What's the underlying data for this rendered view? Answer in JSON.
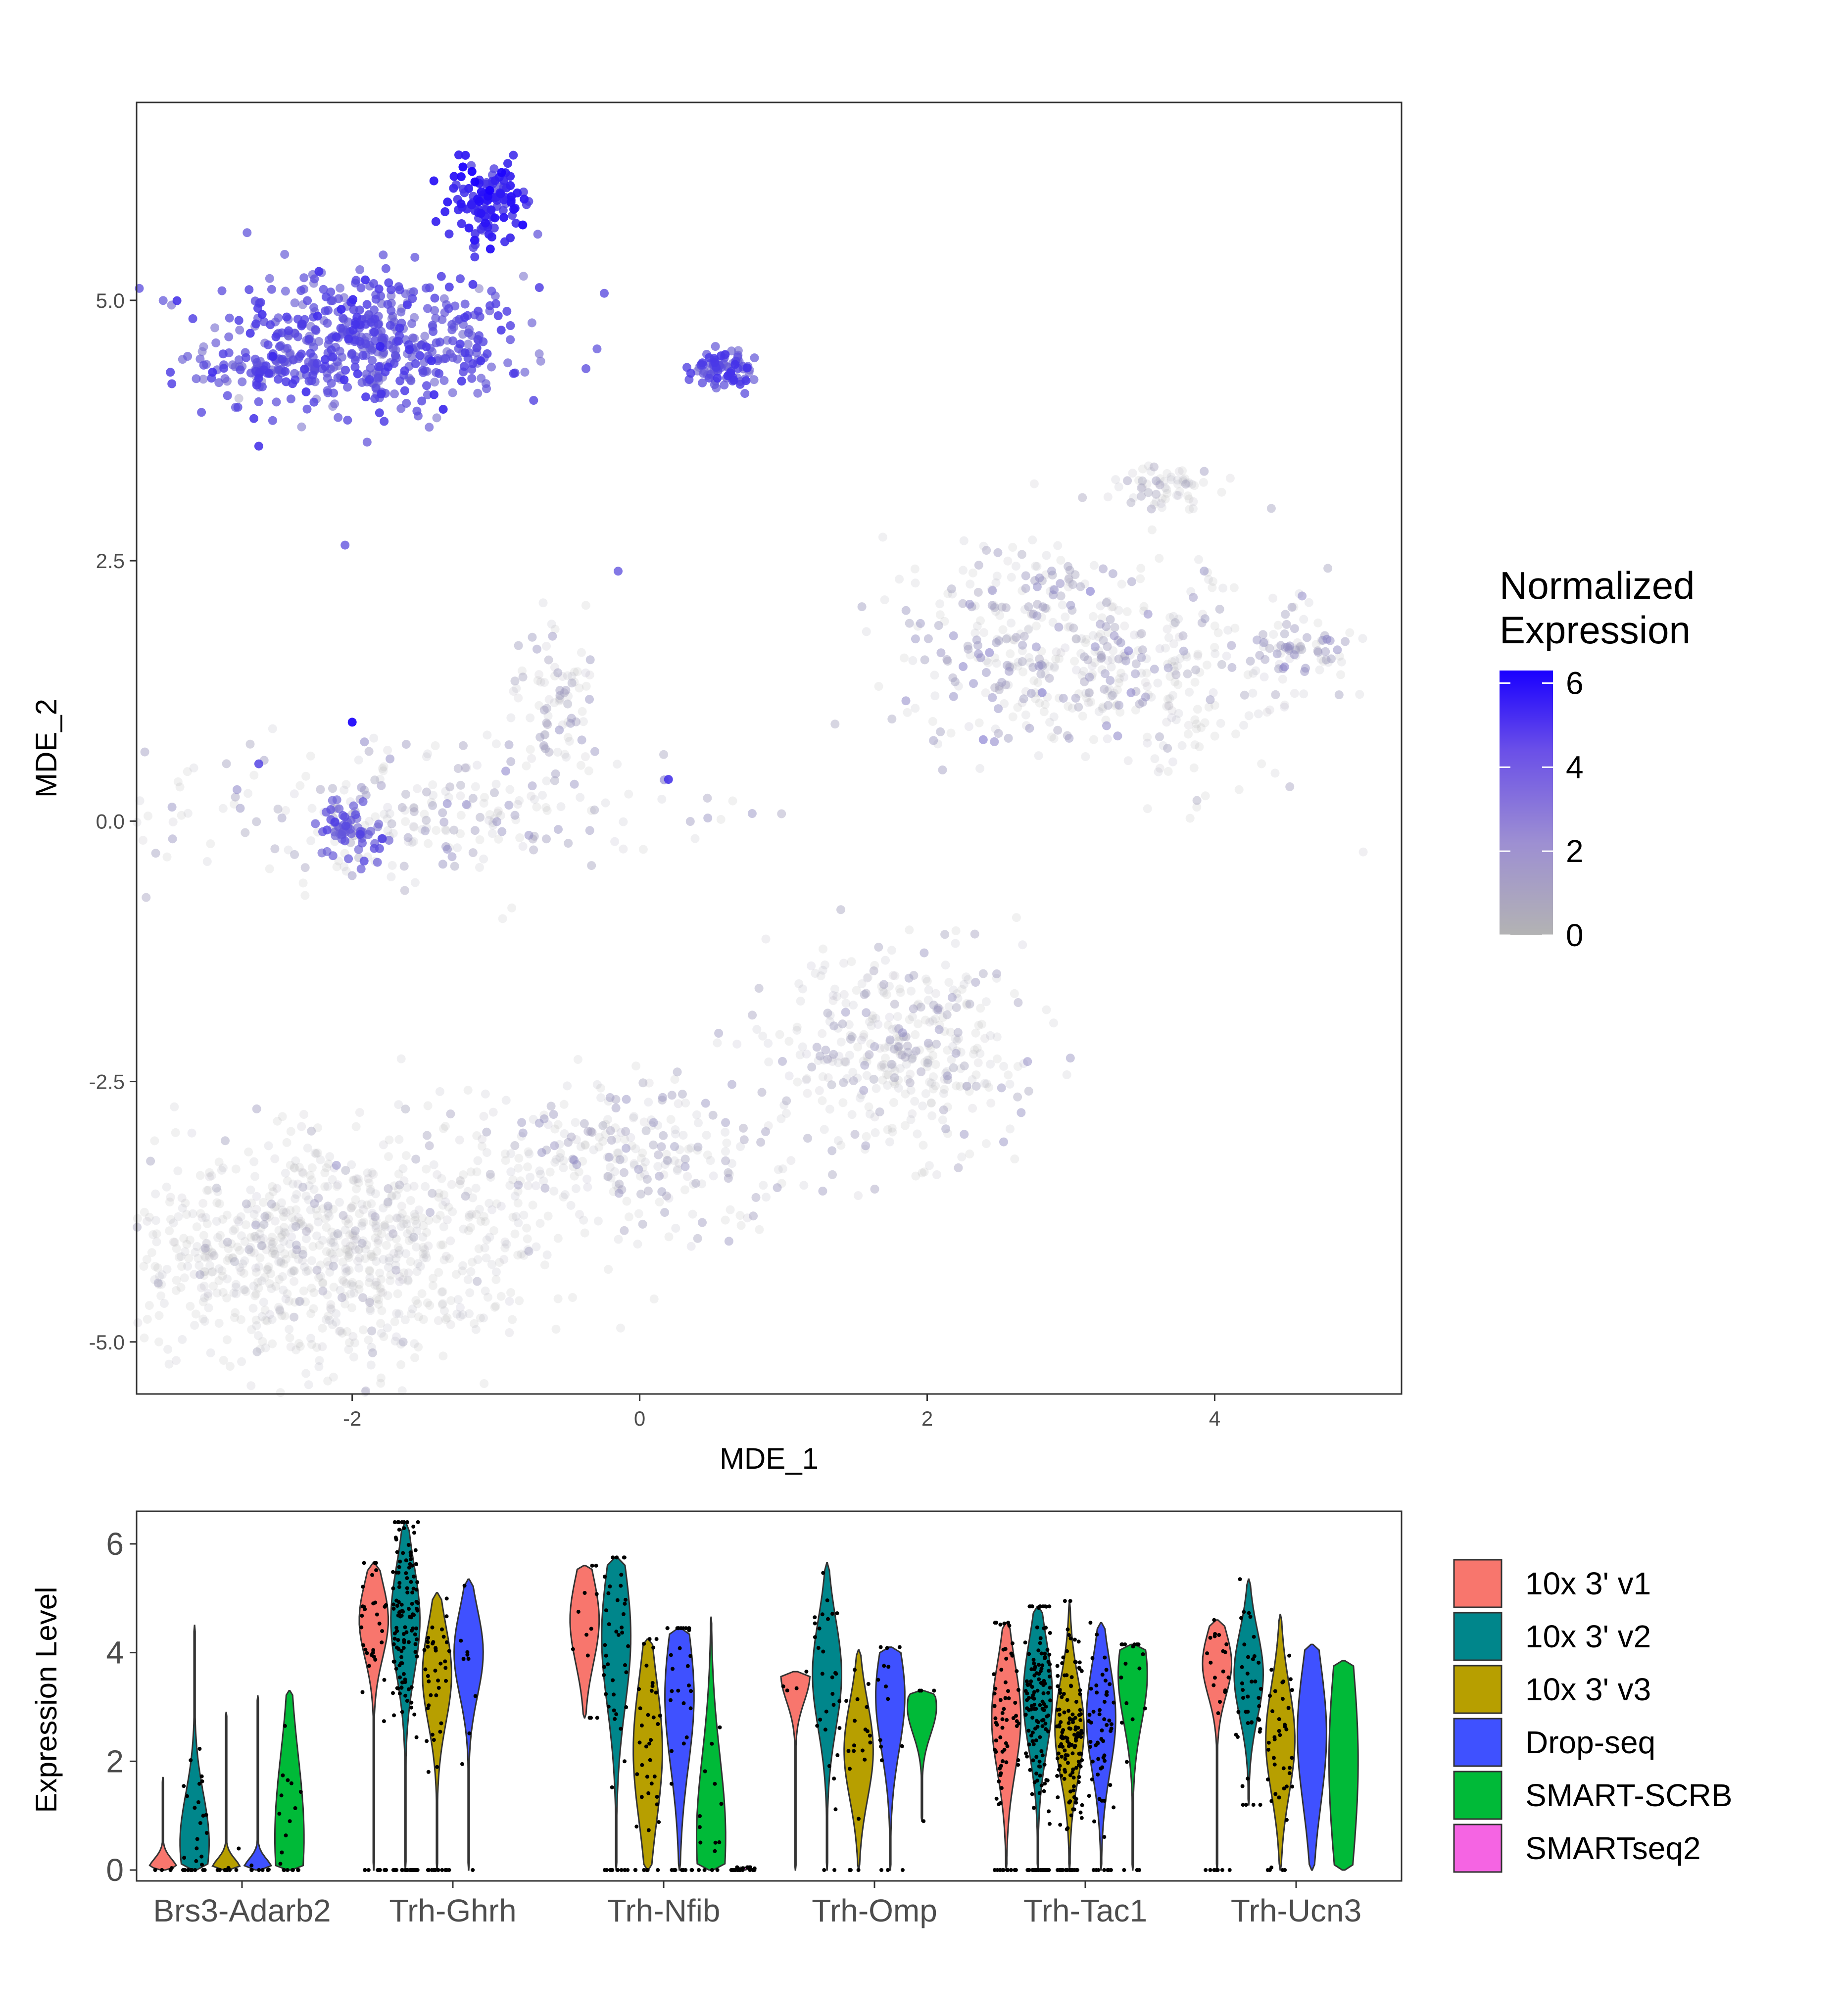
{
  "chart_data": [
    {
      "type": "scatter",
      "xlabel": "MDE_1",
      "ylabel": "MDE_2",
      "xlim": [
        -3.5,
        5.3
      ],
      "ylim": [
        -5.5,
        6.9
      ],
      "x_ticks": [
        -2,
        0,
        2,
        4
      ],
      "y_ticks": [
        -5.0,
        -2.5,
        0.0,
        2.5,
        5.0
      ],
      "x_tick_labels": [
        "-2",
        "0",
        "2",
        "4"
      ],
      "y_tick_labels": [
        "-5.0",
        "-2.5",
        "0.0",
        "2.5",
        "5.0"
      ],
      "grid": false,
      "legend": {
        "title_lines": [
          "Normalized",
          "Expression"
        ],
        "position": "right",
        "range": [
          0,
          6.3
        ],
        "ticks": [
          0,
          2,
          4,
          6
        ],
        "tick_labels": [
          "0",
          "2",
          "4",
          "6"
        ],
        "low_color": "#b3b3b3",
        "high_color": "#1a00ff"
      },
      "clusters": [
        {
          "name": "top-left high",
          "cx": -1.9,
          "cy": 4.6,
          "sx": 0.55,
          "sy": 0.35,
          "n": 520,
          "expr": 3.4,
          "expr_sd": 0.6
        },
        {
          "name": "top-left peak",
          "cx": -1.05,
          "cy": 5.95,
          "sx": 0.15,
          "sy": 0.2,
          "n": 120,
          "expr": 4.8,
          "expr_sd": 0.7
        },
        {
          "name": "top-left tail",
          "cx": -2.6,
          "cy": 4.3,
          "sx": 0.3,
          "sy": 0.1,
          "n": 60,
          "expr": 3.5,
          "expr_sd": 0.5
        },
        {
          "name": "top-middle",
          "cx": 0.6,
          "cy": 4.35,
          "sx": 0.12,
          "sy": 0.1,
          "n": 80,
          "expr": 3.6,
          "expr_sd": 0.6
        },
        {
          "name": "middle-left arm",
          "cx": -1.6,
          "cy": 0.1,
          "sx": 0.9,
          "sy": 0.35,
          "n": 260,
          "expr": 0.5,
          "expr_sd": 0.5
        },
        {
          "name": "middle-left arm up",
          "cx": -0.6,
          "cy": 1.2,
          "sx": 0.15,
          "sy": 0.35,
          "n": 80,
          "expr": 0.4,
          "expr_sd": 0.4
        },
        {
          "name": "middle-left spot",
          "cx": -2.0,
          "cy": -0.1,
          "sx": 0.12,
          "sy": 0.12,
          "n": 60,
          "expr": 3.2,
          "expr_sd": 0.5
        },
        {
          "name": "right arm",
          "cx": 2.7,
          "cy": 1.8,
          "sx": 0.5,
          "sy": 0.5,
          "n": 260,
          "expr": 0.5,
          "expr_sd": 0.6
        },
        {
          "name": "right arm body",
          "cx": 3.6,
          "cy": 1.4,
          "sx": 0.6,
          "sy": 0.55,
          "n": 260,
          "expr": 0.3,
          "expr_sd": 0.4
        },
        {
          "name": "right arm top",
          "cx": 3.7,
          "cy": 3.2,
          "sx": 0.2,
          "sy": 0.1,
          "n": 60,
          "expr": 0.3,
          "expr_sd": 0.3
        },
        {
          "name": "right arm tip",
          "cx": 4.55,
          "cy": 1.65,
          "sx": 0.2,
          "sy": 0.2,
          "n": 60,
          "expr": 0.8,
          "expr_sd": 0.6
        },
        {
          "name": "bottom right blob",
          "cx": 1.8,
          "cy": -2.2,
          "sx": 0.45,
          "sy": 0.45,
          "n": 380,
          "expr": 0.3,
          "expr_sd": 0.4
        },
        {
          "name": "bottom bridge",
          "cx": 0.0,
          "cy": -3.2,
          "sx": 0.6,
          "sy": 0.35,
          "n": 260,
          "expr": 0.4,
          "expr_sd": 0.4
        },
        {
          "name": "bottom left body",
          "cx": -2.2,
          "cy": -4.1,
          "sx": 0.75,
          "sy": 0.55,
          "n": 900,
          "expr": 0.15,
          "expr_sd": 0.3
        }
      ],
      "scattered_points": [
        {
          "x": -2.65,
          "y": 3.6,
          "expr": 4.5
        },
        {
          "x": -2.05,
          "y": 2.65,
          "expr": 3.5
        },
        {
          "x": -0.15,
          "y": 2.4,
          "expr": 3.5
        },
        {
          "x": -2.0,
          "y": 0.95,
          "expr": 6.0
        },
        {
          "x": 0.2,
          "y": 0.4,
          "expr": 4.5
        },
        {
          "x": -2.65,
          "y": 0.55,
          "expr": 4.0
        },
        {
          "x": -0.9,
          "y": 5.6,
          "expr": 0.8
        }
      ]
    },
    {
      "type": "violin",
      "xlabel": "",
      "ylabel": "Expression Level",
      "ylim": [
        -0.2,
        6.6
      ],
      "y_ticks": [
        0,
        2,
        4,
        6
      ],
      "y_tick_labels": [
        "0",
        "2",
        "4",
        "6"
      ],
      "grid": false,
      "legend_position": "right",
      "categories": [
        "Brs3-Adarb2",
        "Trh-Ghrh",
        "Trh-Nfib",
        "Trh-Omp",
        "Trh-Tac1",
        "Trh-Ucn3"
      ],
      "series": [
        {
          "name": "10x 3' v1",
          "color": "#f8766d"
        },
        {
          "name": "10x 3' v2",
          "color": "#00868b"
        },
        {
          "name": "10x 3' v3",
          "color": "#b79f00"
        },
        {
          "name": "Drop-seq",
          "color": "#3f51ff"
        },
        {
          "name": "SMART-SCRB",
          "color": "#00ba38"
        },
        {
          "name": "SMARTseq2",
          "color": "#f564e3"
        }
      ],
      "violins": [
        [
          {
            "min": 0,
            "max": 1.7,
            "mode": 0.0,
            "spread": 0.15,
            "n": 4
          },
          {
            "min": 0,
            "max": 4.5,
            "mode": 0.5,
            "spread": 0.9,
            "n": 30
          },
          {
            "min": 0,
            "max": 2.9,
            "mode": 0.0,
            "spread": 0.2,
            "n": 12
          },
          {
            "min": 0,
            "max": 3.2,
            "mode": 0.0,
            "spread": 0.2,
            "n": 8
          },
          {
            "min": 0,
            "max": 3.3,
            "mode": 0.6,
            "spread": 1.5,
            "n": 20
          },
          {
            "min": 0,
            "max": 0,
            "mode": 0,
            "spread": 0,
            "n": 0
          }
        ],
        [
          {
            "min": 0,
            "max": 5.65,
            "mode": 4.6,
            "spread": 0.7,
            "n": 40
          },
          {
            "min": 0,
            "max": 6.4,
            "mode": 4.6,
            "spread": 1.0,
            "n": 140
          },
          {
            "min": 0,
            "max": 5.1,
            "mode": 3.6,
            "spread": 0.9,
            "n": 50
          },
          {
            "min": 0,
            "max": 5.35,
            "mode": 4.0,
            "spread": 0.8,
            "n": 10
          },
          {
            "min": 0,
            "max": 0,
            "mode": 0,
            "spread": 0,
            "n": 0
          },
          {
            "min": 0,
            "max": 0,
            "mode": 0,
            "spread": 0,
            "n": 0
          }
        ],
        [
          {
            "min": 2.8,
            "max": 5.6,
            "mode": 4.6,
            "spread": 0.8,
            "n": 12
          },
          {
            "min": 0,
            "max": 5.75,
            "mode": 4.3,
            "spread": 1.3,
            "n": 50
          },
          {
            "min": 0,
            "max": 4.25,
            "mode": 2.2,
            "spread": 1.3,
            "n": 40
          },
          {
            "min": 0,
            "max": 4.45,
            "mode": 3.2,
            "spread": 1.3,
            "n": 35
          },
          {
            "min": 0,
            "max": 4.65,
            "mode": 0.6,
            "spread": 1.5,
            "n": 15
          },
          {
            "min": 0,
            "max": 0.05,
            "mode": 0.0,
            "spread": 0.05,
            "n": 20
          }
        ],
        [
          {
            "min": 0,
            "max": 3.65,
            "mode": 3.6,
            "spread": 0.5,
            "n": 4
          },
          {
            "min": 0,
            "max": 5.65,
            "mode": 3.6,
            "spread": 1.0,
            "n": 30
          },
          {
            "min": 0,
            "max": 4.05,
            "mode": 2.2,
            "spread": 0.9,
            "n": 20
          },
          {
            "min": 0,
            "max": 4.1,
            "mode": 3.2,
            "spread": 1.0,
            "n": 15
          },
          {
            "min": 0.9,
            "max": 3.3,
            "mode": 3.0,
            "spread": 0.5,
            "n": 4
          },
          {
            "min": 0,
            "max": 0,
            "mode": 0,
            "spread": 0,
            "n": 0
          }
        ],
        [
          {
            "min": 0,
            "max": 4.55,
            "mode": 2.8,
            "spread": 1.0,
            "n": 70
          },
          {
            "min": 0,
            "max": 4.85,
            "mode": 3.2,
            "spread": 1.0,
            "n": 160
          },
          {
            "min": 0,
            "max": 4.95,
            "mode": 2.6,
            "spread": 0.9,
            "n": 150
          },
          {
            "min": 0,
            "max": 4.55,
            "mode": 2.8,
            "spread": 1.0,
            "n": 60
          },
          {
            "min": 0,
            "max": 4.15,
            "mode": 3.6,
            "spread": 0.9,
            "n": 20
          },
          {
            "min": 0,
            "max": 0,
            "mode": 0,
            "spread": 0,
            "n": 0
          }
        ],
        [
          {
            "min": 0,
            "max": 4.6,
            "mode": 3.8,
            "spread": 0.6,
            "n": 25
          },
          {
            "min": 1.2,
            "max": 5.35,
            "mode": 3.6,
            "spread": 0.8,
            "n": 40
          },
          {
            "min": 0,
            "max": 4.7,
            "mode": 2.4,
            "spread": 1.0,
            "n": 40
          },
          {
            "min": 0,
            "max": 4.15,
            "mode": 2.5,
            "spread": 1.3,
            "n": 0
          },
          {
            "min": 0,
            "max": 3.85,
            "mode": 2.0,
            "spread": 2.0,
            "n": 0
          },
          {
            "min": 0,
            "max": 0,
            "mode": 0,
            "spread": 0,
            "n": 0
          }
        ]
      ]
    }
  ]
}
